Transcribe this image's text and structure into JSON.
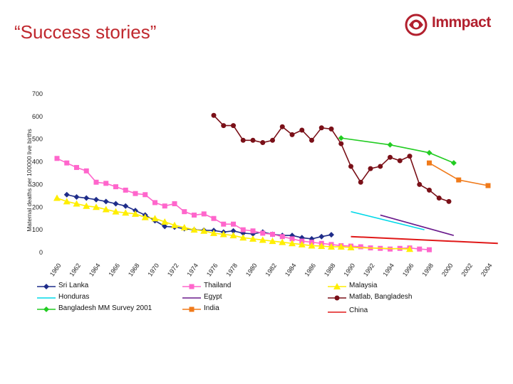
{
  "page": {
    "title": "“Success stories”",
    "logo_text": "Immpact",
    "logo_color": "#b2202e"
  },
  "chart_data": {
    "type": "line",
    "title": "",
    "xlabel": "",
    "ylabel": "Maternal deaths per 100000 live births",
    "ylim": [
      0,
      700
    ],
    "yticks": [
      0,
      100,
      200,
      300,
      400,
      500,
      600,
      700
    ],
    "xlim": [
      1960,
      2004
    ],
    "xticks": [
      "1960",
      "1962",
      "1964",
      "1966",
      "1968",
      "1970",
      "1972",
      "1974",
      "1976",
      "1978",
      "1980",
      "1982",
      "1984",
      "1986",
      "1988",
      "1990",
      "1992",
      "1994",
      "1996",
      "1998",
      "2000",
      "2002",
      "2004"
    ],
    "series": [
      {
        "name": "Sri Lanka",
        "color": "#1f2d8a",
        "marker": "diamond",
        "x": [
          1961,
          1962,
          1963,
          1964,
          1965,
          1966,
          1967,
          1968,
          1969,
          1970,
          1971,
          1972,
          1973,
          1974,
          1975,
          1976,
          1977,
          1978,
          1979,
          1980,
          1981,
          1982,
          1983,
          1984,
          1985,
          1986,
          1987,
          1988
        ],
        "y": [
          255,
          245,
          240,
          233,
          225,
          215,
          205,
          185,
          165,
          140,
          115,
          112,
          105,
          100,
          98,
          97,
          90,
          95,
          85,
          82,
          90,
          80,
          75,
          75,
          65,
          60,
          70,
          78
        ]
      },
      {
        "name": "Thailand",
        "color": "#ff66cc",
        "marker": "square",
        "x": [
          1960,
          1961,
          1962,
          1963,
          1964,
          1965,
          1966,
          1967,
          1968,
          1969,
          1970,
          1971,
          1972,
          1973,
          1974,
          1975,
          1976,
          1977,
          1978,
          1979,
          1980,
          1981,
          1982,
          1983,
          1984,
          1985,
          1986,
          1987,
          1988,
          1989,
          1990,
          1991,
          1992,
          1993,
          1994,
          1995,
          1996,
          1997,
          1998
        ],
        "y": [
          415,
          395,
          375,
          360,
          310,
          305,
          290,
          275,
          260,
          255,
          220,
          205,
          215,
          180,
          165,
          170,
          150,
          125,
          125,
          100,
          95,
          85,
          80,
          70,
          60,
          50,
          45,
          40,
          35,
          30,
          28,
          25,
          20,
          18,
          15,
          18,
          20,
          15,
          12
        ]
      },
      {
        "name": "Honduras",
        "color": "#00d8e8",
        "marker": "none",
        "x": [
          1990,
          1997.5
        ],
        "y": [
          180,
          100
        ]
      },
      {
        "name": "Egypt",
        "color": "#6a1a8c",
        "marker": "none",
        "x": [
          1993,
          2000.5
        ],
        "y": [
          165,
          75
        ]
      },
      {
        "name": "Bangladesh MM Survey 2001",
        "color": "#22cc22",
        "marker": "diamond",
        "x": [
          1989,
          1994,
          1998,
          2000.5
        ],
        "y": [
          505,
          475,
          440,
          395
        ]
      },
      {
        "name": "India",
        "color": "#f07a1a",
        "marker": "square",
        "x": [
          1998,
          2001,
          2004
        ],
        "y": [
          395,
          320,
          295
        ]
      },
      {
        "name": "Malaysia",
        "color": "#ffee00",
        "marker": "triangle",
        "x": [
          1960,
          1961,
          1962,
          1963,
          1964,
          1965,
          1966,
          1967,
          1968,
          1969,
          1970,
          1971,
          1972,
          1973,
          1974,
          1975,
          1976,
          1977,
          1978,
          1979,
          1980,
          1981,
          1982,
          1983,
          1984,
          1985,
          1986,
          1987,
          1988,
          1989,
          1990,
          1996
        ],
        "y": [
          240,
          225,
          215,
          205,
          200,
          190,
          180,
          175,
          170,
          155,
          150,
          135,
          120,
          110,
          100,
          95,
          85,
          80,
          75,
          65,
          60,
          55,
          50,
          45,
          40,
          35,
          30,
          28,
          25,
          25,
          22,
          15
        ]
      },
      {
        "name": "Matlab, Bangladesh",
        "color": "#7a1018",
        "marker": "circle",
        "x": [
          1976,
          1977,
          1978,
          1979,
          1980,
          1981,
          1982,
          1983,
          1984,
          1985,
          1986,
          1987,
          1988,
          1989,
          1990,
          1991,
          1992,
          1993,
          1994,
          1995,
          1996,
          1997,
          1998,
          1999,
          2000
        ],
        "y": [
          605,
          560,
          560,
          495,
          495,
          485,
          495,
          555,
          520,
          540,
          495,
          550,
          545,
          480,
          380,
          310,
          370,
          380,
          420,
          405,
          425,
          300,
          275,
          240,
          225
        ]
      },
      {
        "name": "China",
        "color": "#e01818",
        "marker": "none",
        "x": [
          1990,
          2005
        ],
        "y": [
          70,
          40
        ]
      }
    ]
  }
}
